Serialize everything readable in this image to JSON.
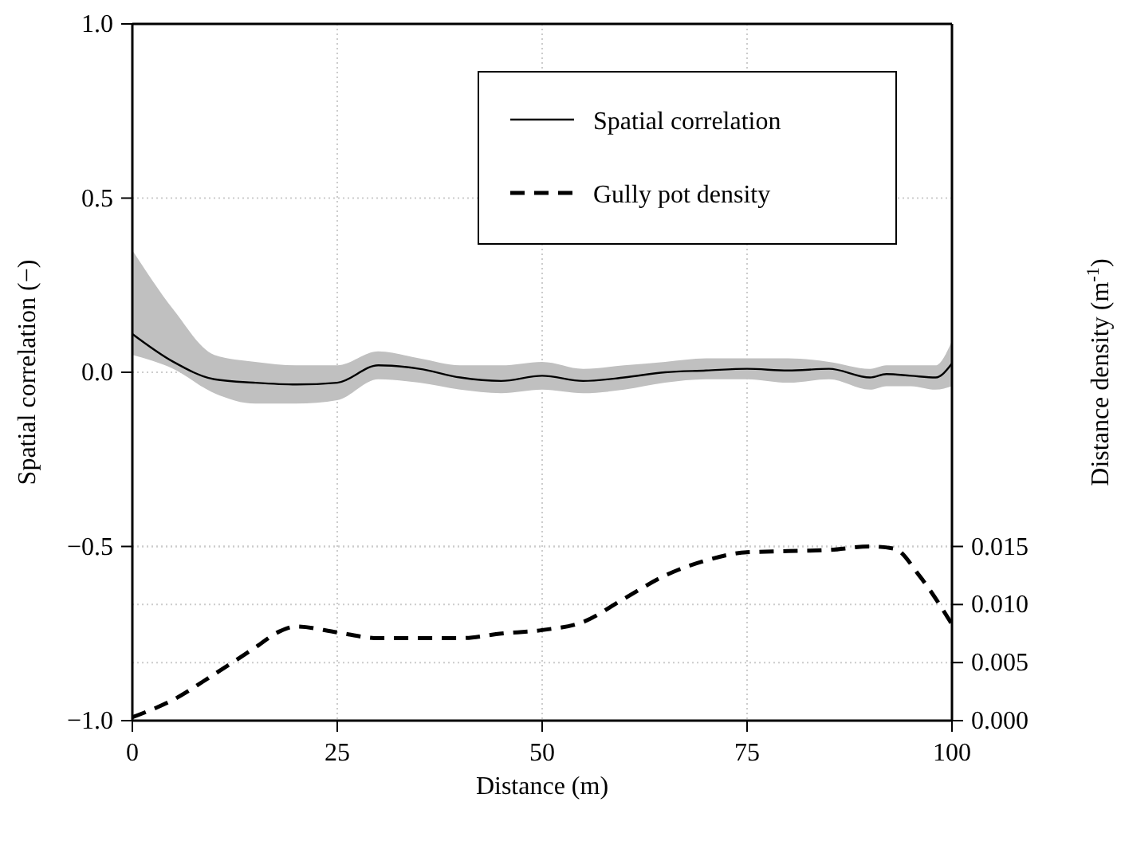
{
  "chart_data": {
    "type": "line",
    "xlabel": "Distance (m)",
    "ylabel": "Spatial correlation (−)",
    "y2label": "Distance density (m$^{-1}$)",
    "xlim": [
      0,
      100
    ],
    "xticks": [
      0,
      25,
      50,
      75,
      100
    ],
    "ylim": [
      -1,
      1
    ],
    "yticks": [
      {
        "value": -1,
        "label": "−1.0"
      },
      {
        "value": -0.5,
        "label": "−0.5"
      },
      {
        "value": 0,
        "label": "0.0"
      },
      {
        "value": 0.5,
        "label": "0.5"
      },
      {
        "value": 1,
        "label": "1.0"
      }
    ],
    "y2lim": [
      0,
      0.06
    ],
    "y2ticks": [
      {
        "value": 0,
        "label": "0.000"
      },
      {
        "value": 0.005,
        "label": "0.005"
      },
      {
        "value": 0.01,
        "label": "0.010"
      },
      {
        "value": 0.015,
        "label": "0.015"
      }
    ],
    "grid": true,
    "legend": "top right",
    "series": [
      {
        "name": "Spatial correlation",
        "color": "#000000",
        "line_style": "solid",
        "x": [
          0,
          5,
          10,
          15,
          20,
          25,
          30,
          35,
          40,
          45,
          50,
          55,
          60,
          65,
          70,
          75,
          80,
          85,
          90,
          92,
          95,
          98,
          100
        ],
        "values": [
          0.11,
          0.03,
          -0.02,
          -0.03,
          -0.035,
          -0.03,
          0.02,
          0.01,
          -0.015,
          -0.025,
          -0.01,
          -0.025,
          -0.015,
          0,
          0.005,
          0.01,
          0.005,
          0.01,
          -0.015,
          -0.005,
          -0.01,
          -0.015,
          0.025
        ],
        "lower": [
          0.05,
          0.01,
          -0.06,
          -0.09,
          -0.09,
          -0.08,
          -0.02,
          -0.03,
          -0.05,
          -0.06,
          -0.05,
          -0.06,
          -0.05,
          -0.03,
          -0.02,
          -0.02,
          -0.03,
          -0.02,
          -0.05,
          -0.04,
          -0.04,
          -0.05,
          -0.04
        ],
        "upper": [
          0.35,
          0.18,
          0.05,
          0.03,
          0.02,
          0.02,
          0.06,
          0.04,
          0.02,
          0.02,
          0.03,
          0.01,
          0.02,
          0.03,
          0.04,
          0.04,
          0.04,
          0.03,
          0.01,
          0.02,
          0.02,
          0.02,
          0.09
        ]
      },
      {
        "name": "Gully pot density",
        "color": "#000000",
        "line_style": "dashed",
        "axis": "y2",
        "x": [
          0,
          5,
          10,
          15,
          18,
          20,
          25,
          30,
          40,
          45,
          50,
          55,
          60,
          65,
          70,
          75,
          80,
          85,
          90,
          93,
          96,
          100
        ],
        "values": [
          0.0003,
          0.0018,
          0.004,
          0.0063,
          0.0077,
          0.0081,
          0.0076,
          0.0071,
          0.0071,
          0.0075,
          0.0078,
          0.0085,
          0.0105,
          0.0125,
          0.0138,
          0.0145,
          0.0146,
          0.0147,
          0.015,
          0.0148,
          0.0125,
          0.0083
        ]
      }
    ]
  }
}
